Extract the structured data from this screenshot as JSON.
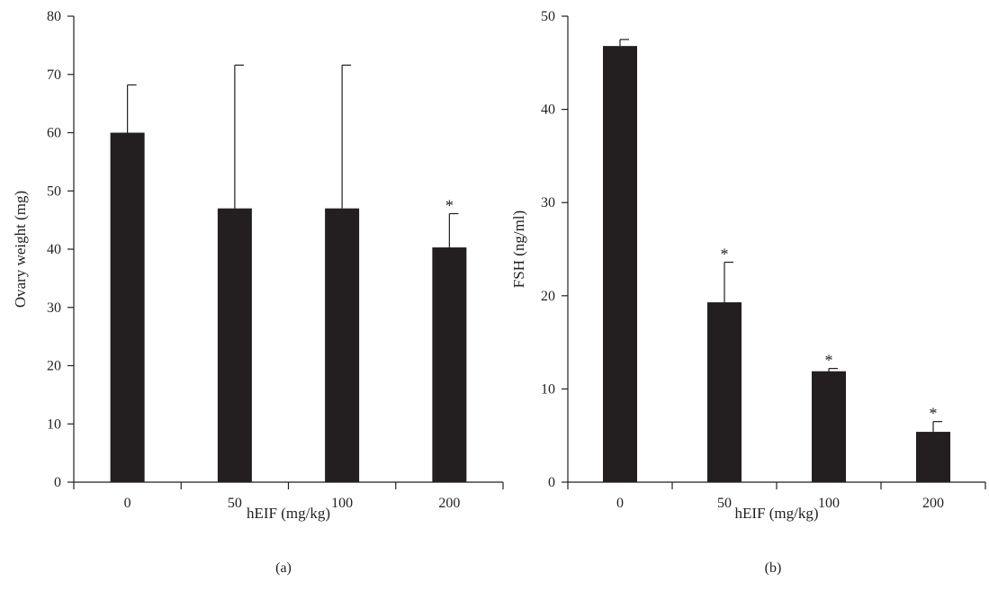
{
  "colors": {
    "bar": "#231f20",
    "axis": "#231f20",
    "background": "#ffffff"
  },
  "chart_data": [
    {
      "type": "bar",
      "panel_label": "(a)",
      "title": "",
      "xlabel": "hEIF (mg/kg)",
      "ylabel": "Ovary weight (mg)",
      "ylim": [
        0,
        80
      ],
      "yticks": [
        "0",
        "10",
        "20",
        "30",
        "40",
        "50",
        "60",
        "70",
        "80"
      ],
      "categories": [
        "0",
        "50",
        "100",
        "200"
      ],
      "values": [
        60,
        47,
        47,
        40.3
      ],
      "errors": [
        8.2,
        24.6,
        24.6,
        5.8
      ],
      "significance": [
        "",
        "",
        "",
        "*"
      ],
      "grid": false,
      "legend": "none"
    },
    {
      "type": "bar",
      "panel_label": "(b)",
      "title": "",
      "xlabel": "hEIF (mg/kg)",
      "ylabel": "FSH (ng/ml)",
      "ylim": [
        0,
        50
      ],
      "yticks": [
        "0",
        "10",
        "20",
        "30",
        "40",
        "50"
      ],
      "categories": [
        "0",
        "50",
        "100",
        "200"
      ],
      "values": [
        46.8,
        19.3,
        11.9,
        5.4
      ],
      "errors": [
        0.7,
        4.3,
        0.3,
        1.1
      ],
      "significance": [
        "",
        "*",
        "*",
        "*"
      ],
      "grid": false,
      "legend": "none"
    }
  ]
}
